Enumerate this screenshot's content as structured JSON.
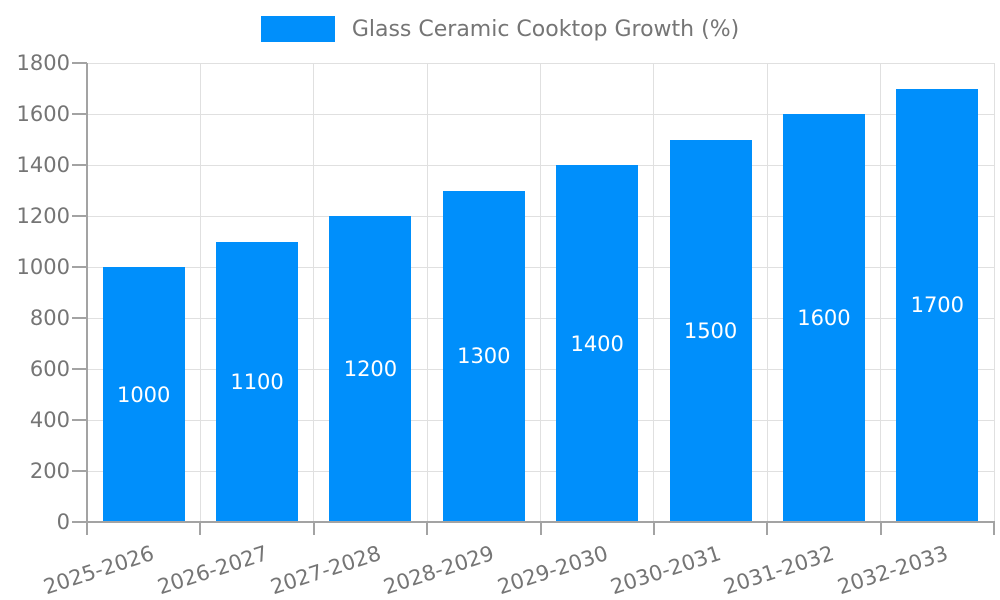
{
  "legend": {
    "label": "Glass Ceramic Cooktop Growth (%)",
    "swatch_color": "#008FFB"
  },
  "chart_data": {
    "type": "bar",
    "title": "Glass Ceramic Cooktop Growth (%)",
    "categories": [
      "2025-2026",
      "2026-2027",
      "2027-2028",
      "2028-2029",
      "2029-2030",
      "2030-2031",
      "2031-2032",
      "2032-2033"
    ],
    "values": [
      1000,
      1100,
      1200,
      1300,
      1400,
      1500,
      1600,
      1700
    ],
    "xlabel": "",
    "ylabel": "",
    "ylim": [
      0,
      1800
    ],
    "ytick_step": 200,
    "ytick_labels": [
      "0",
      "200",
      "400",
      "600",
      "800",
      "1000",
      "1200",
      "1400",
      "1600",
      "1800"
    ],
    "grid": true,
    "legend_position": "top",
    "data_labels": "inside-center",
    "colors": {
      "bar": "#008FFB",
      "gridline": "#e0e0e0",
      "axis_line": "#a3a3a3",
      "tick_label": "#757575",
      "data_label": "#ffffff"
    }
  }
}
